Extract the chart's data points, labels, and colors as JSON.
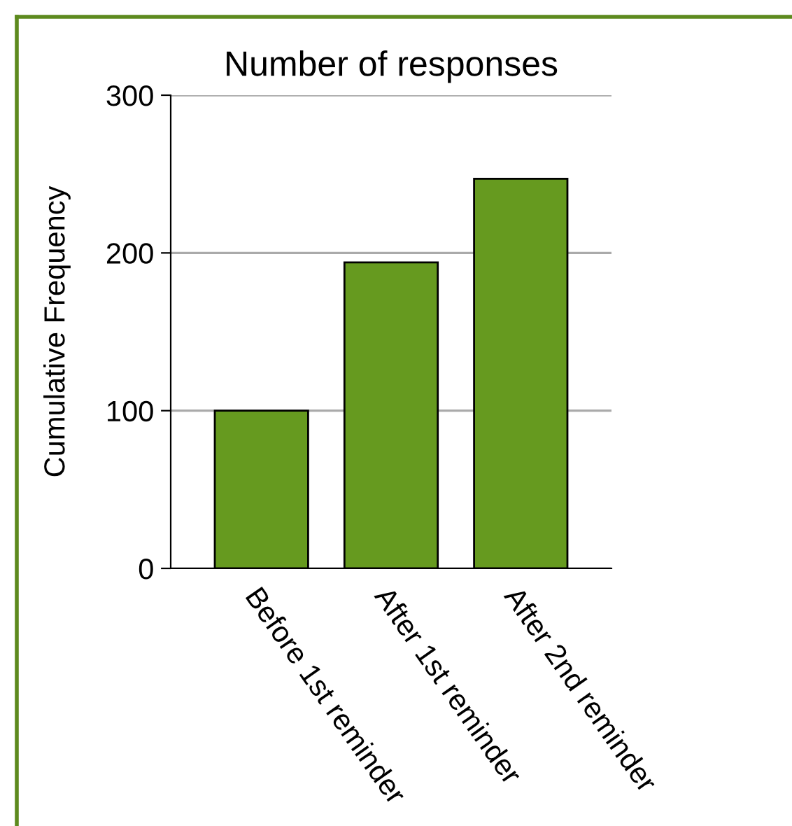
{
  "chart_data": {
    "type": "bar",
    "title": "Number of responses",
    "ylabel": "Cumulative Frequency",
    "categories": [
      "Before 1st reminder",
      "After 1st reminder",
      "After 2nd reminder"
    ],
    "values": [
      100,
      194,
      247
    ],
    "color": "#669a1f",
    "ylim": [
      0,
      300
    ],
    "yticks": [
      0,
      100,
      200,
      300
    ],
    "grid": "y",
    "legend": false
  }
}
